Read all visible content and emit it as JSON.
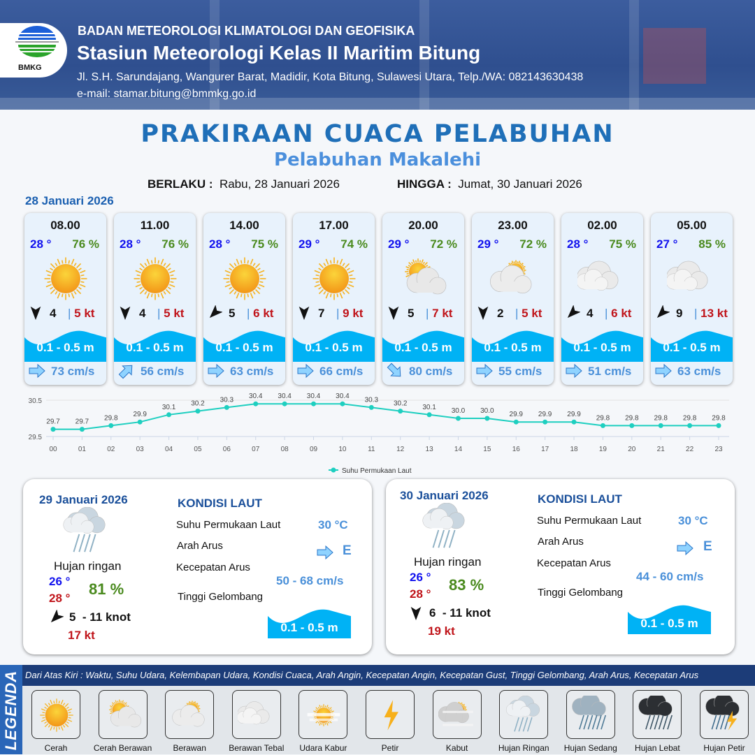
{
  "header": {
    "logo_text": "BMKG",
    "agency": "BADAN METEOROLOGI KLIMATOLOGI DAN GEOFISIKA",
    "station": "Stasiun Meteorologi Kelas II Maritim Bitung",
    "address": "Jl. S.H. Sarundajang, Wangurer Barat, Madidir, Kota Bitung, Sulawesi Utara, Telp./WA: 082143630438",
    "email": "e-mail: stamar.bitung@bmmkg.go.id"
  },
  "title": "PRAKIRAAN CUACA PELABUHAN",
  "subtitle": "Pelabuhan Makalehi",
  "validity": {
    "from_label": "BERLAKU :",
    "from": "Rabu, 28 Januari 2026",
    "to_label": "HINGGA :",
    "to": "Jumat, 30 Januari 2026"
  },
  "day1_date": "28 Januari 2026",
  "hourly": [
    {
      "time": "08.00",
      "temp": "28 °",
      "hum": "76 %",
      "icon": "cerah",
      "wind_dir_deg": 180,
      "wind": "4",
      "gust": "5 kt",
      "wave": "0.1 - 0.5 m",
      "current_dir_deg": 90,
      "current": "73 cm/s"
    },
    {
      "time": "11.00",
      "temp": "28 °",
      "hum": "76 %",
      "icon": "cerah",
      "wind_dir_deg": 180,
      "wind": "4",
      "gust": "5 kt",
      "wave": "0.1 - 0.5 m",
      "current_dir_deg": 45,
      "current": "56 cm/s"
    },
    {
      "time": "14.00",
      "temp": "28 °",
      "hum": "75 %",
      "icon": "cerah",
      "wind_dir_deg": 225,
      "wind": "5",
      "gust": "6 kt",
      "wave": "0.1 - 0.5 m",
      "current_dir_deg": 90,
      "current": "63 cm/s"
    },
    {
      "time": "17.00",
      "temp": "29 °",
      "hum": "74 %",
      "icon": "cerah",
      "wind_dir_deg": 180,
      "wind": "7",
      "gust": "9 kt",
      "wave": "0.1 - 0.5 m",
      "current_dir_deg": 90,
      "current": "66 cm/s"
    },
    {
      "time": "20.00",
      "temp": "29 °",
      "hum": "72 %",
      "icon": "cerah-berawan",
      "wind_dir_deg": 180,
      "wind": "5",
      "gust": "7 kt",
      "wave": "0.1 - 0.5 m",
      "current_dir_deg": 135,
      "current": "80 cm/s"
    },
    {
      "time": "23.00",
      "temp": "29 °",
      "hum": "72 %",
      "icon": "berawan",
      "wind_dir_deg": 180,
      "wind": "2",
      "gust": "5 kt",
      "wave": "0.1 - 0.5 m",
      "current_dir_deg": 90,
      "current": "55 cm/s"
    },
    {
      "time": "02.00",
      "temp": "28 °",
      "hum": "75 %",
      "icon": "berawan-tebal",
      "wind_dir_deg": 225,
      "wind": "4",
      "gust": "6 kt",
      "wave": "0.1 - 0.5 m",
      "current_dir_deg": 90,
      "current": "51 cm/s"
    },
    {
      "time": "05.00",
      "temp": "27 °",
      "hum": "85 %",
      "icon": "berawan-tebal",
      "wind_dir_deg": 225,
      "wind": "9",
      "gust": "13 kt",
      "wave": "0.1 - 0.5 m",
      "current_dir_deg": 90,
      "current": "63 cm/s"
    }
  ],
  "chart_data": {
    "type": "line",
    "x": [
      "00",
      "01",
      "02",
      "03",
      "04",
      "05",
      "06",
      "07",
      "08",
      "09",
      "10",
      "11",
      "12",
      "13",
      "14",
      "15",
      "16",
      "17",
      "18",
      "19",
      "20",
      "21",
      "22",
      "23"
    ],
    "series": [
      {
        "name": "Suhu Permukaan Laut",
        "values": [
          29.7,
          29.7,
          29.8,
          29.9,
          30.1,
          30.2,
          30.3,
          30.4,
          30.4,
          30.4,
          30.4,
          30.3,
          30.2,
          30.1,
          30.0,
          30.0,
          29.9,
          29.9,
          29.9,
          29.8,
          29.8,
          29.8,
          29.8,
          29.8
        ],
        "color": "#1ecfc0"
      }
    ],
    "yticks": [
      "29.5",
      "30.5"
    ],
    "ylim": [
      29.5,
      30.5
    ],
    "grid": true,
    "legend": "bottom"
  },
  "days": [
    {
      "date": "29 Januari 2026",
      "icon": "hujan-ringan",
      "weather": "Hujan ringan",
      "tmin": "26 °",
      "tmax": "28 °",
      "hum": "81 %",
      "wind_dir_deg": 225,
      "wind": "5  - 11 knot",
      "gust": "17 kt",
      "sea_title": "KONDISI LAUT",
      "sst_label": "Suhu Permukaan Laut",
      "sst": "30 °C",
      "cur_dir_label": "Arah Arus",
      "cur_dir": "E",
      "cur_spd_label": "Kecepatan Arus",
      "cur_spd": "50 - 68 cm/s",
      "wave_label": "Tinggi Gelombang",
      "wave": "0.1 - 0.5 m"
    },
    {
      "date": "30 Januari 2026",
      "icon": "hujan-ringan",
      "weather": "Hujan ringan",
      "tmin": "26 °",
      "tmax": "28 °",
      "hum": "83 %",
      "wind_dir_deg": 180,
      "wind": "6  - 11 knot",
      "gust": "19 kt",
      "sea_title": "KONDISI LAUT",
      "sst_label": "Suhu Permukaan Laut",
      "sst": "30 °C",
      "cur_dir_label": "Arah Arus",
      "cur_dir": "E",
      "cur_spd_label": "Kecepatan Arus",
      "cur_spd": "44 - 60 cm/s",
      "wave_label": "Tinggi Gelombang",
      "wave": "0.1 - 0.5 m"
    }
  ],
  "legend": {
    "side_label": "LEGENDA",
    "description": "Dari Atas Kiri : Waktu, Suhu Udara, Kelembapan Udara, Kondisi Cuaca, Arah Angin, Kecepatan Angin, Kecepatan Gust, Tinggi Gelombang, Arah Arus, Kecepatan Arus",
    "items": [
      {
        "icon": "cerah",
        "label": "Cerah"
      },
      {
        "icon": "cerah-berawan",
        "label": "Cerah Berawan"
      },
      {
        "icon": "berawan",
        "label": "Berawan"
      },
      {
        "icon": "berawan-tebal",
        "label": "Berawan Tebal"
      },
      {
        "icon": "udara-kabur",
        "label": "Udara Kabur"
      },
      {
        "icon": "petir",
        "label": "Petir"
      },
      {
        "icon": "kabut",
        "label": "Kabut"
      },
      {
        "icon": "hujan-ringan",
        "label": "Hujan Ringan"
      },
      {
        "icon": "hujan-sedang",
        "label": "Hujan Sedang"
      },
      {
        "icon": "hujan-lebat",
        "label": "Hujan Lebat"
      },
      {
        "icon": "hujan-petir",
        "label": "Hujan Petir"
      }
    ]
  },
  "colors": {
    "brand": "#1f6fb8",
    "wave": "#00b2f5",
    "temp": "#1111ee",
    "humidity": "#4a8a1e",
    "gust": "#c0141a",
    "current": "#4a90d9"
  }
}
